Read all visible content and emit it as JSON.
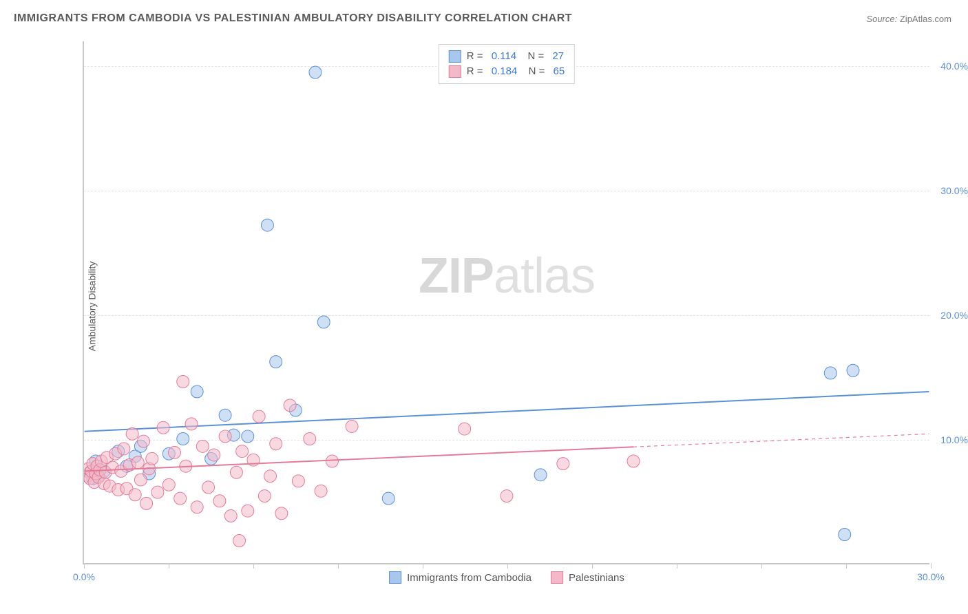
{
  "title": "IMMIGRANTS FROM CAMBODIA VS PALESTINIAN AMBULATORY DISABILITY CORRELATION CHART",
  "source_label": "Source:",
  "source_value": "ZipAtlas.com",
  "ylabel": "Ambulatory Disability",
  "watermark_bold": "ZIP",
  "watermark_light": "atlas",
  "chart": {
    "type": "scatter",
    "xlim": [
      0,
      30
    ],
    "ylim": [
      0,
      42
    ],
    "x_tick_positions": [
      0,
      3,
      6,
      9,
      12,
      15,
      18,
      21,
      24,
      27,
      30
    ],
    "x_tick_labels": {
      "0": "0.0%",
      "30": "30.0%"
    },
    "y_gridlines": [
      10,
      20,
      30,
      40
    ],
    "y_tick_labels": {
      "10": "10.0%",
      "20": "20.0%",
      "30": "30.0%",
      "40": "40.0%"
    },
    "background_color": "#ffffff",
    "grid_color": "#e4e4e4",
    "axis_color": "#c8c8c8",
    "label_fontsize": 14,
    "label_color": "#5b8fd8",
    "marker_radius": 9,
    "marker_opacity": 0.55,
    "line_width": 2,
    "series": [
      {
        "name": "Immigrants from Cambodia",
        "color_fill": "#a8c7ec",
        "color_stroke": "#5b8fd8",
        "r": 0.114,
        "n": 27,
        "trend": {
          "x1": 0,
          "y1": 10.6,
          "x2": 30,
          "y2": 13.8,
          "solid_until_x": 30,
          "dash_after": false
        },
        "points": [
          [
            0.2,
            7.3
          ],
          [
            0.3,
            6.8
          ],
          [
            0.4,
            8.2
          ],
          [
            0.5,
            7.0
          ],
          [
            0.7,
            7.4
          ],
          [
            1.2,
            9.0
          ],
          [
            1.5,
            7.8
          ],
          [
            1.8,
            8.6
          ],
          [
            2.0,
            9.4
          ],
          [
            2.3,
            7.2
          ],
          [
            3.0,
            8.8
          ],
          [
            3.5,
            10.0
          ],
          [
            4.0,
            13.8
          ],
          [
            4.5,
            8.4
          ],
          [
            5.0,
            11.9
          ],
          [
            5.3,
            10.3
          ],
          [
            5.8,
            10.2
          ],
          [
            6.5,
            27.2
          ],
          [
            6.8,
            16.2
          ],
          [
            7.5,
            12.3
          ],
          [
            8.2,
            39.5
          ],
          [
            8.5,
            19.4
          ],
          [
            10.8,
            5.2
          ],
          [
            16.2,
            7.1
          ],
          [
            26.5,
            15.3
          ],
          [
            27.0,
            2.3
          ],
          [
            27.3,
            15.5
          ]
        ]
      },
      {
        "name": "Palestinians",
        "color_fill": "#f4b9c9",
        "color_stroke": "#e47a97",
        "r": 0.184,
        "n": 65,
        "trend": {
          "x1": 0,
          "y1": 7.4,
          "x2": 30,
          "y2": 10.4,
          "solid_until_x": 19.5,
          "dash_after": true
        },
        "points": [
          [
            0.1,
            7.0
          ],
          [
            0.15,
            7.6
          ],
          [
            0.2,
            6.8
          ],
          [
            0.25,
            7.4
          ],
          [
            0.3,
            8.0
          ],
          [
            0.35,
            6.5
          ],
          [
            0.4,
            7.2
          ],
          [
            0.45,
            7.8
          ],
          [
            0.5,
            6.9
          ],
          [
            0.55,
            7.5
          ],
          [
            0.6,
            8.2
          ],
          [
            0.7,
            6.4
          ],
          [
            0.75,
            7.3
          ],
          [
            0.8,
            8.5
          ],
          [
            0.9,
            6.2
          ],
          [
            1.0,
            7.7
          ],
          [
            1.1,
            8.8
          ],
          [
            1.2,
            5.9
          ],
          [
            1.3,
            7.4
          ],
          [
            1.4,
            9.2
          ],
          [
            1.5,
            6.0
          ],
          [
            1.6,
            7.9
          ],
          [
            1.7,
            10.4
          ],
          [
            1.8,
            5.5
          ],
          [
            1.9,
            8.1
          ],
          [
            2.0,
            6.7
          ],
          [
            2.1,
            9.8
          ],
          [
            2.2,
            4.8
          ],
          [
            2.3,
            7.6
          ],
          [
            2.4,
            8.4
          ],
          [
            2.6,
            5.7
          ],
          [
            2.8,
            10.9
          ],
          [
            3.0,
            6.3
          ],
          [
            3.2,
            8.9
          ],
          [
            3.4,
            5.2
          ],
          [
            3.5,
            14.6
          ],
          [
            3.6,
            7.8
          ],
          [
            3.8,
            11.2
          ],
          [
            4.0,
            4.5
          ],
          [
            4.2,
            9.4
          ],
          [
            4.4,
            6.1
          ],
          [
            4.6,
            8.7
          ],
          [
            4.8,
            5.0
          ],
          [
            5.0,
            10.2
          ],
          [
            5.2,
            3.8
          ],
          [
            5.4,
            7.3
          ],
          [
            5.5,
            1.8
          ],
          [
            5.6,
            9.0
          ],
          [
            5.8,
            4.2
          ],
          [
            6.0,
            8.3
          ],
          [
            6.2,
            11.8
          ],
          [
            6.4,
            5.4
          ],
          [
            6.6,
            7.0
          ],
          [
            6.8,
            9.6
          ],
          [
            7.0,
            4.0
          ],
          [
            7.3,
            12.7
          ],
          [
            7.6,
            6.6
          ],
          [
            8.0,
            10.0
          ],
          [
            8.4,
            5.8
          ],
          [
            8.8,
            8.2
          ],
          [
            9.5,
            11.0
          ],
          [
            13.5,
            10.8
          ],
          [
            15.0,
            5.4
          ],
          [
            17.0,
            8.0
          ],
          [
            19.5,
            8.2
          ]
        ]
      }
    ],
    "bottom_legend": [
      {
        "label": "Immigrants from Cambodia",
        "fill": "#a8c7ec",
        "stroke": "#5b8fd8"
      },
      {
        "label": "Palestinians",
        "fill": "#f4b9c9",
        "stroke": "#e47a97"
      }
    ]
  }
}
